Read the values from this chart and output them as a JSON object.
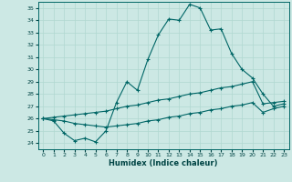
{
  "xlabel": "Humidex (Indice chaleur)",
  "ylabel": "",
  "background_color": "#cce8e4",
  "grid_color": "#b0d8d0",
  "line_color": "#006666",
  "xlim": [
    -0.5,
    23.5
  ],
  "ylim": [
    23.5,
    35.5
  ],
  "yticks": [
    24,
    25,
    26,
    27,
    28,
    29,
    30,
    31,
    32,
    33,
    34,
    35
  ],
  "xticks": [
    0,
    1,
    2,
    3,
    4,
    5,
    6,
    7,
    8,
    9,
    10,
    11,
    12,
    13,
    14,
    15,
    16,
    17,
    18,
    19,
    20,
    21,
    22,
    23
  ],
  "series1_x": [
    0,
    1,
    2,
    3,
    4,
    5,
    6,
    7,
    8,
    9,
    10,
    11,
    12,
    13,
    14,
    15,
    16,
    17,
    18,
    19,
    20,
    21,
    22,
    23
  ],
  "series1_y": [
    26.0,
    25.8,
    24.8,
    24.2,
    24.4,
    24.1,
    25.0,
    27.3,
    29.0,
    28.3,
    30.8,
    32.8,
    34.1,
    34.0,
    35.3,
    35.0,
    33.2,
    33.3,
    31.3,
    30.0,
    29.3,
    28.0,
    27.0,
    27.2
  ],
  "series2_x": [
    0,
    1,
    2,
    3,
    4,
    5,
    6,
    7,
    8,
    9,
    10,
    11,
    12,
    13,
    14,
    15,
    16,
    17,
    18,
    19,
    20,
    21,
    22,
    23
  ],
  "series2_y": [
    26.0,
    26.1,
    26.2,
    26.3,
    26.4,
    26.5,
    26.6,
    26.8,
    27.0,
    27.1,
    27.3,
    27.5,
    27.6,
    27.8,
    28.0,
    28.1,
    28.3,
    28.5,
    28.6,
    28.8,
    29.0,
    27.2,
    27.3,
    27.4
  ],
  "series3_x": [
    0,
    1,
    2,
    3,
    4,
    5,
    6,
    7,
    8,
    9,
    10,
    11,
    12,
    13,
    14,
    15,
    16,
    17,
    18,
    19,
    20,
    21,
    22,
    23
  ],
  "series3_y": [
    26.0,
    25.9,
    25.8,
    25.6,
    25.5,
    25.4,
    25.3,
    25.4,
    25.5,
    25.6,
    25.8,
    25.9,
    26.1,
    26.2,
    26.4,
    26.5,
    26.7,
    26.8,
    27.0,
    27.1,
    27.3,
    26.5,
    26.8,
    27.0
  ]
}
